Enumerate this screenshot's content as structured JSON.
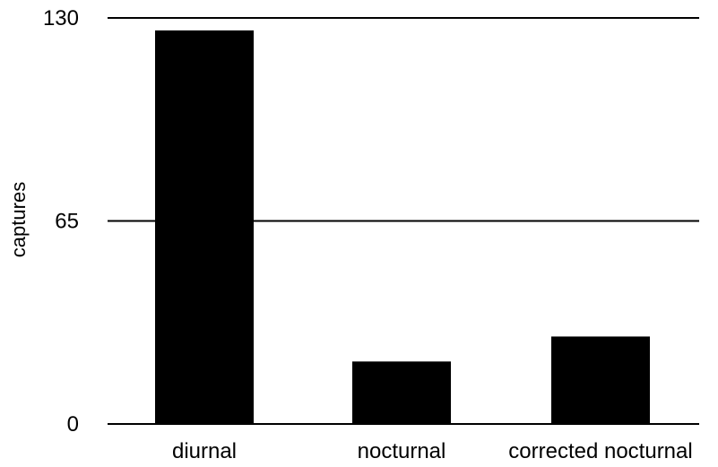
{
  "chart_data": {
    "type": "bar",
    "title": "",
    "xlabel": "",
    "ylabel": "captures",
    "categories": [
      "diurnal",
      "nocturnal",
      "corrected nocturnal"
    ],
    "values": [
      126,
      20,
      28
    ],
    "ylim": [
      0,
      130
    ],
    "yticks": [
      0,
      65,
      130
    ],
    "ytick_labels": [
      "0",
      "65",
      "130"
    ],
    "grid": true,
    "legend": "none",
    "bar_color": "#000000"
  }
}
